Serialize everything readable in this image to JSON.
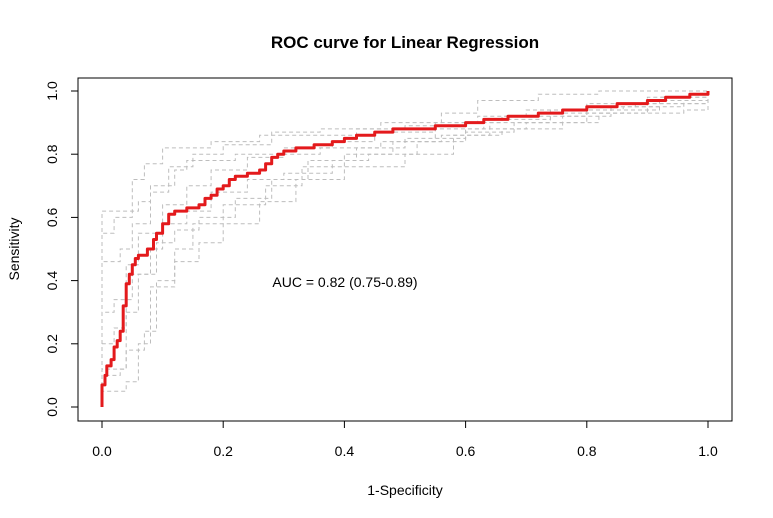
{
  "chart_data": {
    "type": "line",
    "title": "ROC curve for Linear Regression",
    "xlabel": "1-Specificity",
    "ylabel": "Sensitivity",
    "xlim": [
      0,
      1
    ],
    "ylim": [
      0,
      1
    ],
    "xticks": [
      "0.0",
      "0.2",
      "0.4",
      "0.6",
      "0.8",
      "1.0"
    ],
    "yticks": [
      "0.0",
      "0.2",
      "0.4",
      "0.6",
      "0.8",
      "1.0"
    ],
    "annotation": "AUC = 0.82 (0.75-0.89)",
    "grid": false,
    "colors": {
      "main": "#e31a1c",
      "bootstrap": "#bdbdbd"
    },
    "series": [
      {
        "role": "main",
        "values": [
          [
            0.0,
            0.0
          ],
          [
            0.0,
            0.07
          ],
          [
            0.005,
            0.1
          ],
          [
            0.008,
            0.13
          ],
          [
            0.015,
            0.15
          ],
          [
            0.02,
            0.19
          ],
          [
            0.025,
            0.21
          ],
          [
            0.03,
            0.24
          ],
          [
            0.035,
            0.32
          ],
          [
            0.04,
            0.39
          ],
          [
            0.045,
            0.42
          ],
          [
            0.05,
            0.45
          ],
          [
            0.055,
            0.47
          ],
          [
            0.06,
            0.48
          ],
          [
            0.075,
            0.5
          ],
          [
            0.085,
            0.53
          ],
          [
            0.09,
            0.55
          ],
          [
            0.1,
            0.58
          ],
          [
            0.11,
            0.61
          ],
          [
            0.12,
            0.62
          ],
          [
            0.14,
            0.63
          ],
          [
            0.16,
            0.64
          ],
          [
            0.17,
            0.66
          ],
          [
            0.18,
            0.67
          ],
          [
            0.19,
            0.69
          ],
          [
            0.2,
            0.7
          ],
          [
            0.21,
            0.72
          ],
          [
            0.22,
            0.73
          ],
          [
            0.24,
            0.74
          ],
          [
            0.26,
            0.75
          ],
          [
            0.27,
            0.77
          ],
          [
            0.28,
            0.79
          ],
          [
            0.29,
            0.8
          ],
          [
            0.3,
            0.81
          ],
          [
            0.32,
            0.82
          ],
          [
            0.35,
            0.83
          ],
          [
            0.38,
            0.84
          ],
          [
            0.4,
            0.85
          ],
          [
            0.42,
            0.86
          ],
          [
            0.45,
            0.87
          ],
          [
            0.48,
            0.88
          ],
          [
            0.55,
            0.89
          ],
          [
            0.6,
            0.9
          ],
          [
            0.63,
            0.91
          ],
          [
            0.67,
            0.92
          ],
          [
            0.72,
            0.93
          ],
          [
            0.76,
            0.94
          ],
          [
            0.8,
            0.95
          ],
          [
            0.85,
            0.96
          ],
          [
            0.9,
            0.97
          ],
          [
            0.93,
            0.98
          ],
          [
            0.97,
            0.99
          ],
          [
            1.0,
            1.0
          ]
        ]
      },
      {
        "role": "bootstrap",
        "values": [
          [
            0.0,
            0.0
          ],
          [
            0.0,
            0.62
          ],
          [
            0.04,
            0.62
          ],
          [
            0.06,
            0.65
          ],
          [
            0.08,
            0.7
          ],
          [
            0.12,
            0.75
          ],
          [
            0.14,
            0.78
          ],
          [
            0.22,
            0.8
          ],
          [
            0.3,
            0.82
          ],
          [
            0.38,
            0.84
          ],
          [
            0.45,
            0.87
          ],
          [
            0.55,
            0.9
          ],
          [
            0.62,
            0.92
          ],
          [
            0.7,
            0.94
          ],
          [
            0.8,
            0.96
          ],
          [
            0.9,
            0.98
          ],
          [
            1.0,
            1.0
          ]
        ]
      },
      {
        "role": "bootstrap",
        "values": [
          [
            0.0,
            0.0
          ],
          [
            0.0,
            0.1
          ],
          [
            0.03,
            0.12
          ],
          [
            0.04,
            0.3
          ],
          [
            0.06,
            0.42
          ],
          [
            0.09,
            0.52
          ],
          [
            0.12,
            0.56
          ],
          [
            0.16,
            0.6
          ],
          [
            0.22,
            0.66
          ],
          [
            0.28,
            0.72
          ],
          [
            0.34,
            0.78
          ],
          [
            0.42,
            0.82
          ],
          [
            0.5,
            0.85
          ],
          [
            0.6,
            0.87
          ],
          [
            0.68,
            0.9
          ],
          [
            0.8,
            0.93
          ],
          [
            0.9,
            0.96
          ],
          [
            1.0,
            1.0
          ]
        ]
      },
      {
        "role": "bootstrap",
        "values": [
          [
            0.0,
            0.0
          ],
          [
            0.0,
            0.2
          ],
          [
            0.02,
            0.25
          ],
          [
            0.04,
            0.45
          ],
          [
            0.06,
            0.55
          ],
          [
            0.1,
            0.64
          ],
          [
            0.14,
            0.7
          ],
          [
            0.18,
            0.75
          ],
          [
            0.24,
            0.79
          ],
          [
            0.3,
            0.8
          ],
          [
            0.36,
            0.82
          ],
          [
            0.46,
            0.84
          ],
          [
            0.56,
            0.86
          ],
          [
            0.64,
            0.9
          ],
          [
            0.74,
            0.93
          ],
          [
            0.86,
            0.95
          ],
          [
            0.96,
            0.97
          ],
          [
            1.0,
            1.0
          ]
        ]
      },
      {
        "role": "bootstrap",
        "values": [
          [
            0.0,
            0.0
          ],
          [
            0.0,
            0.05
          ],
          [
            0.04,
            0.08
          ],
          [
            0.06,
            0.2
          ],
          [
            0.08,
            0.38
          ],
          [
            0.12,
            0.46
          ],
          [
            0.16,
            0.52
          ],
          [
            0.2,
            0.58
          ],
          [
            0.26,
            0.65
          ],
          [
            0.32,
            0.72
          ],
          [
            0.4,
            0.76
          ],
          [
            0.5,
            0.8
          ],
          [
            0.58,
            0.86
          ],
          [
            0.66,
            0.88
          ],
          [
            0.76,
            0.92
          ],
          [
            0.84,
            0.95
          ],
          [
            0.92,
            0.98
          ],
          [
            1.0,
            1.0
          ]
        ]
      },
      {
        "role": "bootstrap",
        "values": [
          [
            0.0,
            0.0
          ],
          [
            0.0,
            0.46
          ],
          [
            0.03,
            0.5
          ],
          [
            0.05,
            0.58
          ],
          [
            0.08,
            0.68
          ],
          [
            0.11,
            0.76
          ],
          [
            0.15,
            0.8
          ],
          [
            0.2,
            0.83
          ],
          [
            0.28,
            0.87
          ],
          [
            0.36,
            0.88
          ],
          [
            0.46,
            0.9
          ],
          [
            0.56,
            0.93
          ],
          [
            0.62,
            0.97
          ],
          [
            0.72,
            0.99
          ],
          [
            0.82,
            1.0
          ],
          [
            1.0,
            1.0
          ]
        ]
      },
      {
        "role": "bootstrap",
        "values": [
          [
            0.0,
            0.0
          ],
          [
            0.0,
            0.3
          ],
          [
            0.02,
            0.34
          ],
          [
            0.05,
            0.42
          ],
          [
            0.08,
            0.5
          ],
          [
            0.1,
            0.58
          ],
          [
            0.14,
            0.62
          ],
          [
            0.18,
            0.68
          ],
          [
            0.24,
            0.72
          ],
          [
            0.3,
            0.74
          ],
          [
            0.38,
            0.78
          ],
          [
            0.44,
            0.8
          ],
          [
            0.52,
            0.84
          ],
          [
            0.6,
            0.88
          ],
          [
            0.7,
            0.9
          ],
          [
            0.82,
            0.93
          ],
          [
            0.96,
            0.94
          ],
          [
            1.0,
            1.0
          ]
        ]
      },
      {
        "role": "bootstrap",
        "values": [
          [
            0.0,
            0.0
          ],
          [
            0.0,
            0.12
          ],
          [
            0.04,
            0.18
          ],
          [
            0.07,
            0.24
          ],
          [
            0.09,
            0.4
          ],
          [
            0.12,
            0.5
          ],
          [
            0.15,
            0.58
          ],
          [
            0.2,
            0.64
          ],
          [
            0.27,
            0.7
          ],
          [
            0.33,
            0.76
          ],
          [
            0.4,
            0.8
          ],
          [
            0.48,
            0.84
          ],
          [
            0.55,
            0.88
          ],
          [
            0.63,
            0.91
          ],
          [
            0.74,
            0.94
          ],
          [
            0.88,
            0.96
          ],
          [
            1.0,
            1.0
          ]
        ]
      },
      {
        "role": "bootstrap",
        "values": [
          [
            0.0,
            0.0
          ],
          [
            0.0,
            0.55
          ],
          [
            0.02,
            0.6
          ],
          [
            0.05,
            0.72
          ],
          [
            0.07,
            0.77
          ],
          [
            0.1,
            0.82
          ],
          [
            0.18,
            0.84
          ],
          [
            0.26,
            0.86
          ],
          [
            0.34,
            0.86
          ],
          [
            0.42,
            0.88
          ],
          [
            0.5,
            0.89
          ],
          [
            0.58,
            0.9
          ],
          [
            0.66,
            0.92
          ],
          [
            0.8,
            0.94
          ],
          [
            0.92,
            0.97
          ],
          [
            1.0,
            1.0
          ]
        ]
      }
    ]
  }
}
